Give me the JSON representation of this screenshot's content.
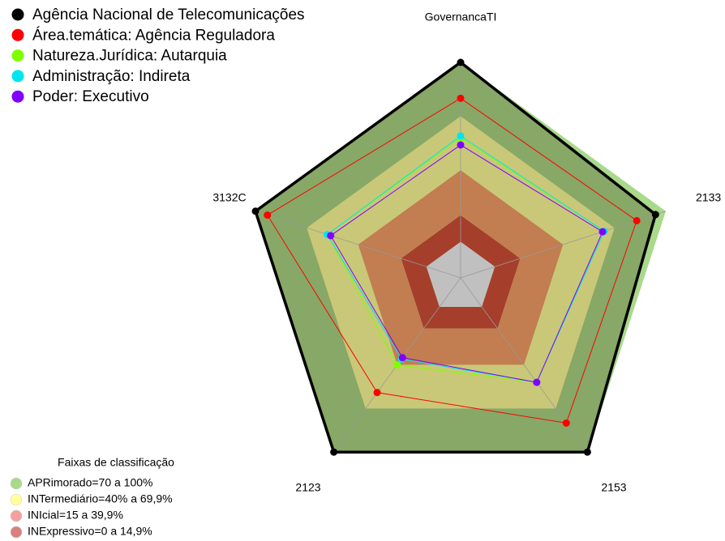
{
  "chart_data": {
    "type": "radar",
    "categories": [
      "GovernancaTI",
      "2133",
      "2153",
      "2123",
      "3132C"
    ],
    "rlim": [
      -20,
      100
    ],
    "series": [
      {
        "name": "Agência Nacional de Telecomunicações",
        "color": "#000000",
        "values": [
          100,
          94,
          100,
          100,
          100
        ]
      },
      {
        "name": "Área.temática: Agência Reguladora",
        "color": "#ff0000",
        "values": [
          80,
          83,
          80,
          59,
          93
        ]
      },
      {
        "name": "Natureza.Jurídica: Autarquia",
        "color": "#7fff00",
        "values": [
          58,
          64,
          52,
          40,
          58
        ]
      },
      {
        "name": "Administração: Indireta",
        "color": "#00e5ee",
        "values": [
          59,
          64,
          52,
          36,
          58
        ]
      },
      {
        "name": "Poder: Executivo",
        "color": "#7f00ff",
        "values": [
          54,
          63,
          52,
          35,
          56
        ]
      }
    ],
    "bands_title": "Faixas de classificação",
    "bands": [
      {
        "label": "APRimorado=70 a 100%",
        "range": [
          70,
          100
        ],
        "color": "#a9d98b",
        "fill": "#87a866"
      },
      {
        "label": "INTermediário=40% a 69,9%",
        "range": [
          40,
          69.9
        ],
        "color": "#ffff9c",
        "fill": "#c9c878"
      },
      {
        "label": "INIcial=15 a 39,9%",
        "range": [
          15,
          39.9
        ],
        "color": "#f4a0a0",
        "fill": "#c27d50"
      },
      {
        "label": "INExpressivo=0 a 14,9%",
        "range": [
          0,
          14.9
        ],
        "color": "#d88080",
        "fill": "#a53f2c"
      }
    ],
    "center_color": "#c0c0c0"
  }
}
